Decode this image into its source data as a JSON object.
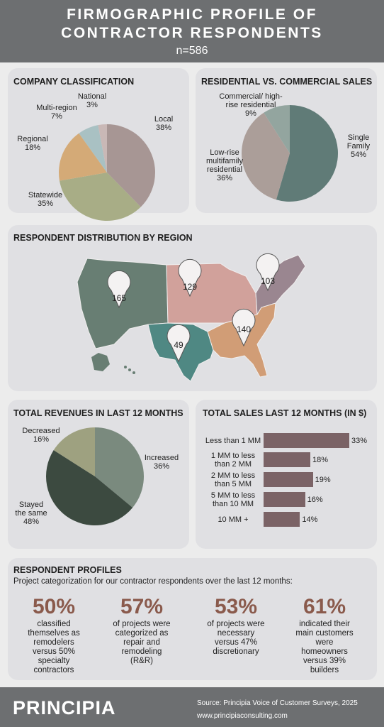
{
  "header": {
    "title_line1": "FIRMOGRAPHIC PROFILE OF",
    "title_line2": "CONTRACTOR RESPONDENTS",
    "sample": "n=586"
  },
  "company": {
    "title": "COMPANY CLASSIFICATION",
    "labels": {
      "national": [
        "National",
        "3%"
      ],
      "multiregion": [
        "Multi-region",
        "7%"
      ],
      "regional": [
        "Regional",
        "18%"
      ],
      "statewide": [
        "Statewide",
        "35%"
      ],
      "local": [
        "Local",
        "38%"
      ]
    }
  },
  "sales_type": {
    "title": "RESIDENTIAL VS. COMMERCIAL SALES",
    "labels": {
      "commercial": [
        "Commercial/ high-",
        "rise residential",
        "9%"
      ],
      "lowrise": [
        "Low-rise",
        "multifamily",
        "residential",
        "36%"
      ],
      "single": [
        "Single",
        "Family",
        "54%"
      ]
    }
  },
  "region": {
    "title": "RESPONDENT DISTRIBUTION BY REGION",
    "pins": {
      "west": "165",
      "midwest": "129",
      "northeast": "103",
      "southwest": "49",
      "southeast": "140"
    }
  },
  "revenue": {
    "title": "TOTAL REVENUES IN LAST 12 MONTHS",
    "labels": {
      "decreased": [
        "Decreased",
        "16%"
      ],
      "increased": [
        "Increased",
        "36%"
      ],
      "same": [
        "Stayed",
        "the same",
        "48%"
      ]
    }
  },
  "total_sales": {
    "title": "TOTAL SALES LAST 12 MONTHS (IN $)",
    "rows": [
      {
        "label": [
          "Less than 1 MM"
        ],
        "pct": "33%"
      },
      {
        "label": [
          "1 MM to less",
          "than 2 MM"
        ],
        "pct": "18%"
      },
      {
        "label": [
          "2 MM to less",
          "than 5 MM"
        ],
        "pct": "19%"
      },
      {
        "label": [
          "5 MM to less",
          "than 10 MM"
        ],
        "pct": "16%"
      },
      {
        "label": [
          "10 MM +"
        ],
        "pct": "14%"
      }
    ]
  },
  "profiles": {
    "title": "RESPONDENT PROFILES",
    "subtitle": "Project categorization for our contractor respondents over the last 12 months:",
    "stats": [
      {
        "num": "50%",
        "lines": [
          "classified",
          "themselves as",
          "remodelers",
          "versus 50%",
          "specialty",
          "contractors"
        ]
      },
      {
        "num": "57%",
        "lines": [
          "of projects were",
          "categorized as",
          "repair and",
          "remodeling",
          "(R&R)"
        ]
      },
      {
        "num": "53%",
        "lines": [
          "of projects were",
          "necessary",
          "versus 47%",
          "discretionary"
        ]
      },
      {
        "num": "61%",
        "lines": [
          "indicated their",
          "main customers",
          "were",
          "homeowners",
          "versus 39%",
          "builders"
        ]
      }
    ]
  },
  "footer": {
    "logo": "PRINCIPIA",
    "source": "Source: Principia Voice of Customer Surveys, 2025",
    "website": "www.principiaconsulting.com"
  },
  "colors": {
    "local": "#a79694",
    "statewide": "#a8ad86",
    "regional": "#d4aa77",
    "multiregion": "#a9c1c3",
    "national": "#c9b8b6",
    "single": "#607b77",
    "lowrise": "#ab9e99",
    "commercial": "#93a59f",
    "west": "#687e73",
    "midwest": "#d1a19b",
    "northeast": "#9a8690",
    "southwest": "#4f8883",
    "southeast": "#d19d76",
    "increased": "#7a8a7e",
    "same": "#3c4a40",
    "decreased": "#9ea180",
    "bar": "#7b6366"
  },
  "chart_data": [
    {
      "type": "pie",
      "title": "COMPANY CLASSIFICATION",
      "categories": [
        "Local",
        "Statewide",
        "Regional",
        "Multi-region",
        "National"
      ],
      "values": [
        38,
        35,
        18,
        7,
        3
      ]
    },
    {
      "type": "pie",
      "title": "RESIDENTIAL VS. COMMERCIAL SALES",
      "categories": [
        "Single Family",
        "Low-rise multifamily residential",
        "Commercial/ high-rise residential"
      ],
      "values": [
        54,
        36,
        9
      ]
    },
    {
      "type": "pie",
      "title": "TOTAL REVENUES IN LAST 12 MONTHS",
      "categories": [
        "Increased",
        "Stayed the same",
        "Decreased"
      ],
      "values": [
        36,
        48,
        16
      ]
    },
    {
      "type": "bar",
      "title": "TOTAL SALES LAST 12 MONTHS (IN $)",
      "categories": [
        "Less than 1 MM",
        "1 MM to less than 2 MM",
        "2 MM to less than 5 MM",
        "5 MM to less than 10 MM",
        "10 MM +"
      ],
      "values": [
        33,
        18,
        19,
        16,
        14
      ]
    }
  ]
}
